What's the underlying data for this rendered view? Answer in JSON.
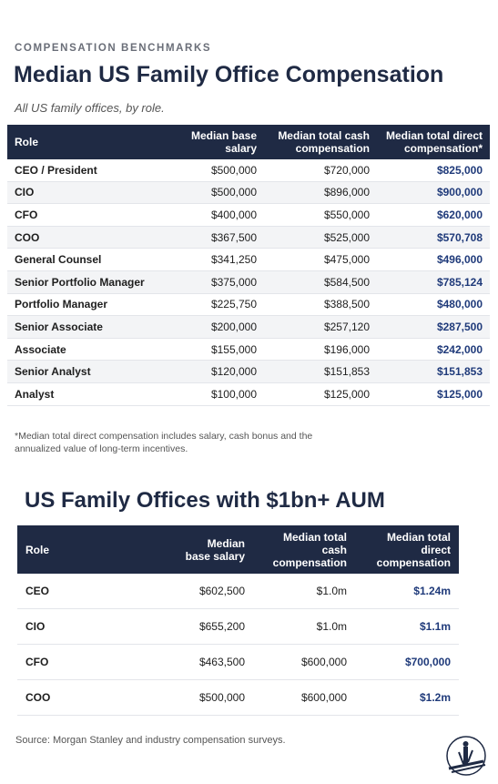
{
  "header": {
    "eyebrow": "COMPENSATION BENCHMARKS",
    "title": "Median US Family Office Compensation",
    "subtitle": "All US family offices, by role."
  },
  "table1": {
    "headers": [
      "Role",
      "Median base salary",
      "Median total cash compensation",
      "Median total direct compensation*"
    ],
    "rows": [
      [
        "CEO / President",
        "$500,000",
        "$720,000",
        "$825,000"
      ],
      [
        "CIO",
        "$500,000",
        "$896,000",
        "$900,000"
      ],
      [
        "CFO",
        "$400,000",
        "$550,000",
        "$620,000"
      ],
      [
        "COO",
        "$367,500",
        "$525,000",
        "$570,708"
      ],
      [
        "General Counsel",
        "$341,250",
        "$475,000",
        "$496,000"
      ],
      [
        "Senior Portfolio Manager",
        "$375,000",
        "$584,500",
        "$785,124"
      ],
      [
        "Portfolio Manager",
        "$225,750",
        "$388,500",
        "$480,000"
      ],
      [
        "Senior Associate",
        "$200,000",
        "$257,120",
        "$287,500"
      ],
      [
        "Associate",
        "$155,000",
        "$196,000",
        "$242,000"
      ],
      [
        "Senior Analyst",
        "$120,000",
        "$151,853",
        "$151,853"
      ],
      [
        "Analyst",
        "$100,000",
        "$125,000",
        "$125,000"
      ]
    ],
    "footnote": "*Median total direct compensation includes salary, cash bonus and the annualized value of long-term incentives."
  },
  "section2": {
    "title": "US Family Offices with $1bn+ AUM"
  },
  "table2": {
    "headers": [
      "Role",
      "Median base salary",
      "Median total cash compensation",
      "Median total direct compensation"
    ],
    "rows": [
      [
        "CEO",
        "$602,500",
        "$1.0m",
        "$1.24m"
      ],
      [
        "CIO",
        "$655,200",
        "$1.0m",
        "$1.1m"
      ],
      [
        "CFO",
        "$463,500",
        "$600,000",
        "$700,000"
      ],
      [
        "COO",
        "$500,000",
        "$600,000",
        "$1.2m"
      ]
    ]
  },
  "footer": {
    "source": "Source: Morgan Stanley and industry compensation surveys."
  }
}
